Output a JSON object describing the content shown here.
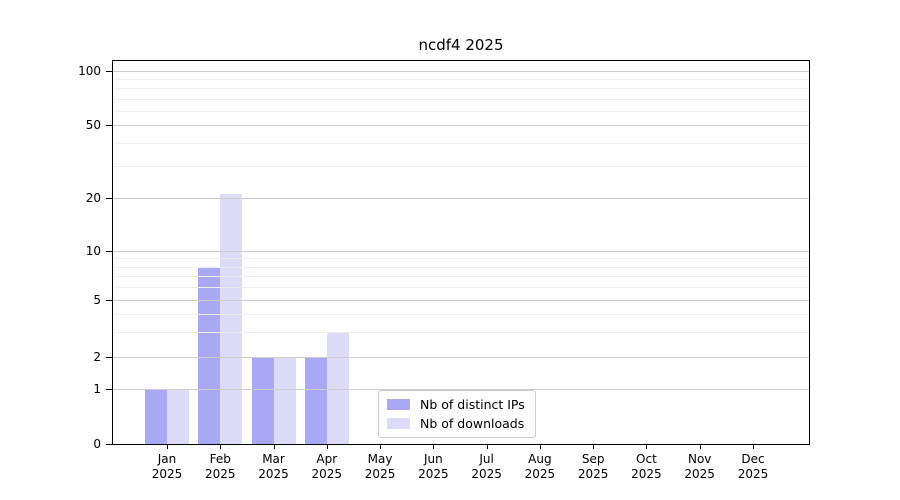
{
  "title": "ncdf4 2025",
  "chart_data": {
    "type": "bar",
    "title": "ncdf4 2025",
    "categories": [
      "Jan 2025",
      "Feb 2025",
      "Mar 2025",
      "Apr 2025",
      "May 2025",
      "Jun 2025",
      "Jul 2025",
      "Aug 2025",
      "Sep 2025",
      "Oct 2025",
      "Nov 2025",
      "Dec 2025"
    ],
    "series": [
      {
        "name": "Nb of distinct IPs",
        "color": "#a8a8f5",
        "values": [
          1,
          8,
          2,
          2,
          0,
          0,
          0,
          0,
          0,
          0,
          0,
          0
        ]
      },
      {
        "name": "Nb of downloads",
        "color": "#dcdcf9",
        "values": [
          1,
          21,
          2,
          3,
          0,
          0,
          0,
          0,
          0,
          0,
          0,
          0
        ]
      }
    ],
    "yscale": "log-like (0,1 linear then log decades)",
    "yticks": [
      0,
      1,
      2,
      5,
      10,
      20,
      50,
      100
    ],
    "minor_gridlines": [
      3,
      4,
      6,
      7,
      8,
      9,
      30,
      40,
      60,
      70,
      80,
      90
    ],
    "ylim": [
      0,
      110
    ],
    "grid": "horizontal",
    "legend_position": "inside bottom-center"
  },
  "colors": {
    "major_grid": "#cccccc",
    "minor_grid": "#ececec",
    "axis": "#000000",
    "background": "#ffffff"
  }
}
